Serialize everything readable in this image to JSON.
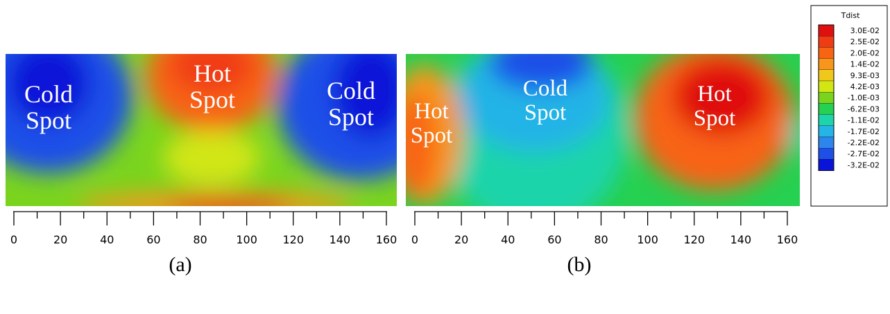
{
  "chart_data": {
    "type": "heatmap",
    "colorbar": {
      "title": "Tdist",
      "labels": [
        "3.0E-02",
        "2.5E-02",
        "2.0E-02",
        "1.4E-02",
        "9.3E-03",
        "4.2E-03",
        "-1.0E-03",
        "-6.2E-03",
        "-1.1E-02",
        "-1.7E-02",
        "-2.2E-02",
        "-2.7E-02",
        "-3.2E-02"
      ],
      "colors": [
        "#e01010",
        "#f03c14",
        "#f86414",
        "#f8961c",
        "#f0c81c",
        "#d2e614",
        "#7ad41e",
        "#26d050",
        "#1ed4aa",
        "#24b4e6",
        "#2c86ec",
        "#1e50e8",
        "#0a14d8"
      ],
      "range": [
        -0.032,
        0.03
      ]
    },
    "panels": [
      {
        "caption": "(a)",
        "x_ticks": [
          "0",
          "20",
          "40",
          "60",
          "80",
          "100",
          "120",
          "140",
          "160"
        ],
        "x_range": [
          0,
          160
        ],
        "annotations": [
          {
            "lines": [
              "Cold",
              "Spot"
            ],
            "kind": "cold"
          },
          {
            "lines": [
              "Hot",
              "Spot"
            ],
            "kind": "hot"
          },
          {
            "lines": [
              "Cold",
              "Spot"
            ],
            "kind": "cold"
          }
        ]
      },
      {
        "caption": "(b)",
        "x_ticks": [
          "0",
          "20",
          "40",
          "60",
          "80",
          "100",
          "120",
          "140",
          "160"
        ],
        "x_range": [
          0,
          160
        ],
        "annotations": [
          {
            "lines": [
              "Hot",
              "Spot"
            ],
            "kind": "hot"
          },
          {
            "lines": [
              "Cold",
              "Spot"
            ],
            "kind": "cold"
          },
          {
            "lines": [
              "Hot",
              "Spot"
            ],
            "kind": "hot"
          }
        ]
      }
    ]
  }
}
